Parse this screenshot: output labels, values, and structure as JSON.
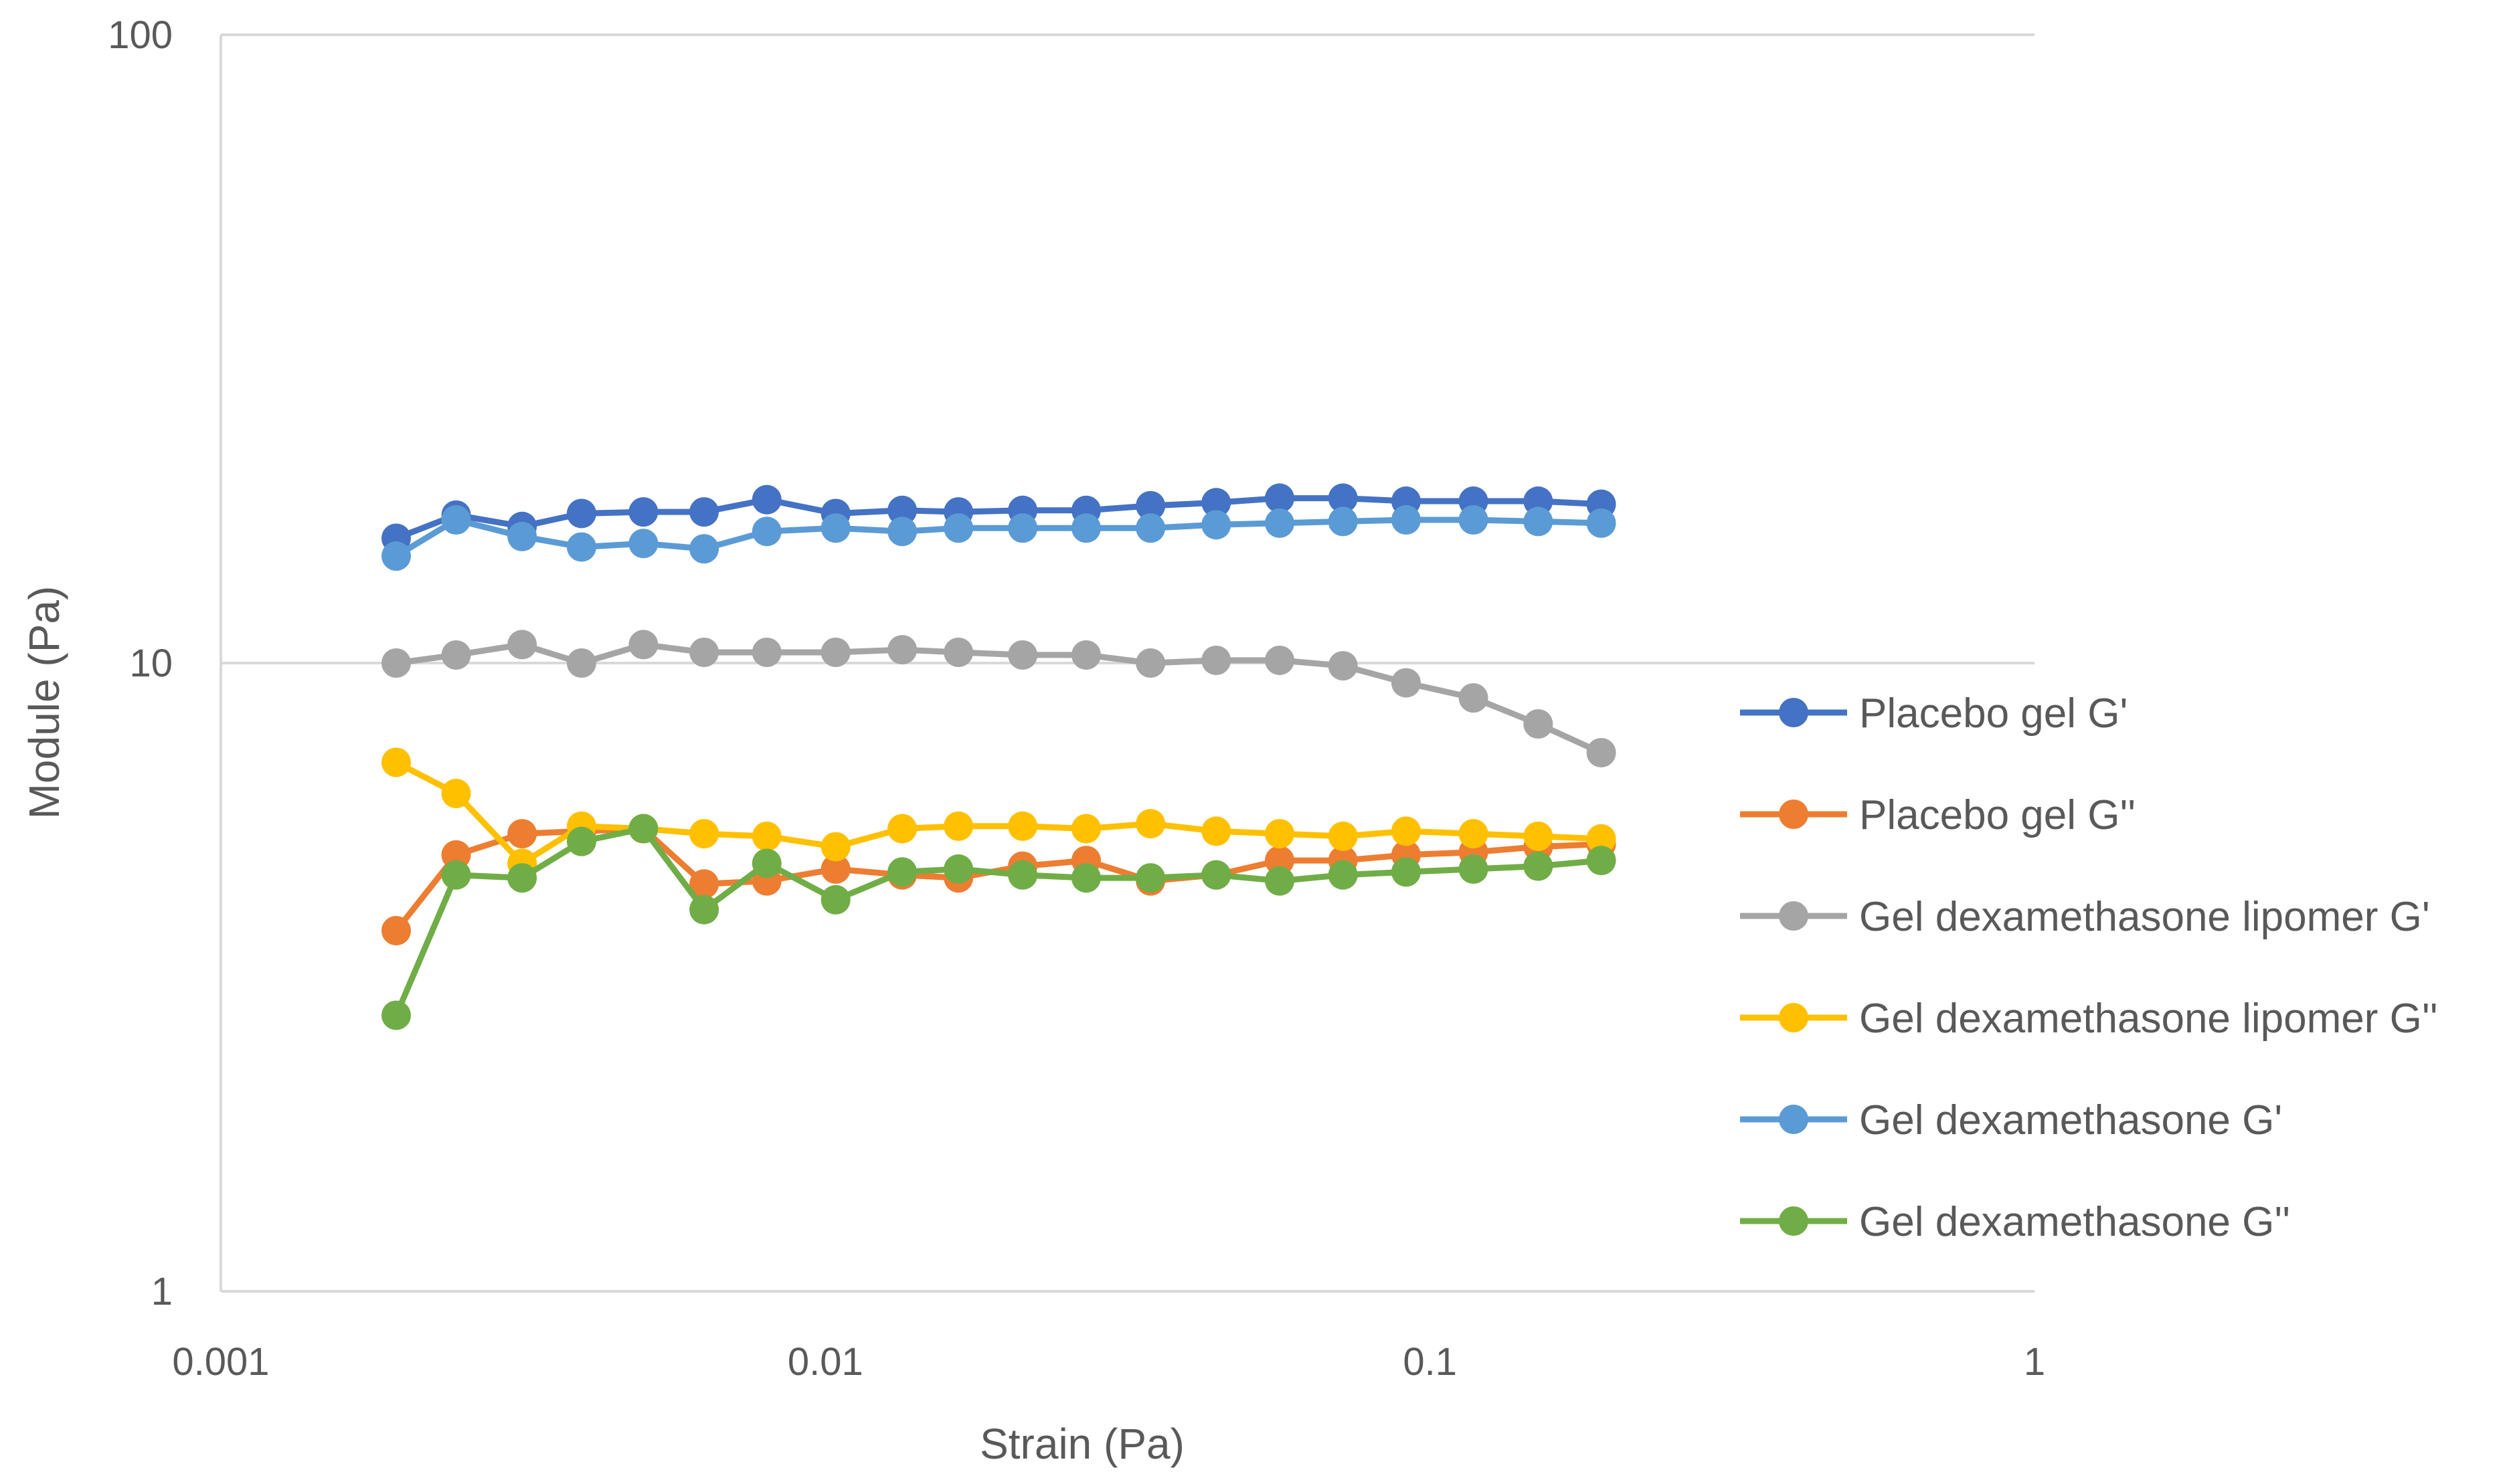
{
  "chart_data": {
    "type": "line",
    "title": "",
    "xlabel": "Strain (Pa)",
    "ylabel": "Module (Pa)",
    "xscale": "log",
    "yscale": "log",
    "xlim": [
      0.001,
      1
    ],
    "ylim": [
      1,
      100
    ],
    "x_ticks": [
      "0.001",
      "0.01",
      "0.1",
      "1"
    ],
    "y_ticks": [
      "1",
      "10",
      "100"
    ],
    "grid": "horizontal",
    "legend_position": "right",
    "x": [
      0.00195,
      0.00245,
      0.00315,
      0.00395,
      0.005,
      0.0063,
      0.008,
      0.0104,
      0.0134,
      0.0166,
      0.0212,
      0.027,
      0.0345,
      0.0443,
      0.0564,
      0.0718,
      0.0913,
      0.118,
      0.151,
      0.192
    ],
    "series": [
      {
        "name": "Placebo gel G'",
        "color": "#4472C4",
        "values": [
          15.8,
          17.2,
          16.5,
          17.3,
          17.4,
          17.4,
          18.2,
          17.3,
          17.5,
          17.4,
          17.5,
          17.5,
          17.8,
          18.0,
          18.3,
          18.3,
          18.1,
          18.1,
          18.1,
          17.9
        ]
      },
      {
        "name": "Placebo gel G''",
        "color": "#ED7D31",
        "values": [
          3.75,
          4.95,
          5.35,
          5.4,
          5.45,
          4.45,
          4.5,
          4.7,
          4.6,
          4.55,
          4.75,
          4.85,
          4.5,
          4.6,
          4.85,
          4.85,
          4.95,
          5.0,
          5.1,
          5.15
        ]
      },
      {
        "name": "Gel dexamethasone lipomer G'",
        "color": "#A5A5A5",
        "values": [
          10.0,
          10.3,
          10.7,
          10.0,
          10.7,
          10.4,
          10.4,
          10.4,
          10.5,
          10.4,
          10.3,
          10.3,
          10.0,
          10.1,
          10.1,
          9.9,
          9.3,
          8.8,
          8.0,
          7.2
        ]
      },
      {
        "name": "Gel dexamethasone lipomer G''",
        "color": "#FFC000",
        "values": [
          6.95,
          6.2,
          4.8,
          5.5,
          5.45,
          5.35,
          5.3,
          5.1,
          5.45,
          5.5,
          5.5,
          5.45,
          5.55,
          5.4,
          5.35,
          5.3,
          5.4,
          5.35,
          5.3,
          5.25
        ]
      },
      {
        "name": "Gel dexamethasone G'",
        "color": "#5B9BD5",
        "values": [
          14.8,
          16.9,
          15.9,
          15.3,
          15.5,
          15.2,
          16.2,
          16.4,
          16.2,
          16.4,
          16.4,
          16.4,
          16.4,
          16.6,
          16.7,
          16.8,
          16.9,
          16.9,
          16.8,
          16.7
        ]
      },
      {
        "name": "Gel dexamethasone G''",
        "color": "#70AD47",
        "values": [
          2.75,
          4.6,
          4.55,
          5.2,
          5.45,
          4.05,
          4.8,
          4.2,
          4.65,
          4.7,
          4.6,
          4.55,
          4.55,
          4.6,
          4.5,
          4.6,
          4.65,
          4.7,
          4.75,
          4.85
        ]
      }
    ]
  }
}
